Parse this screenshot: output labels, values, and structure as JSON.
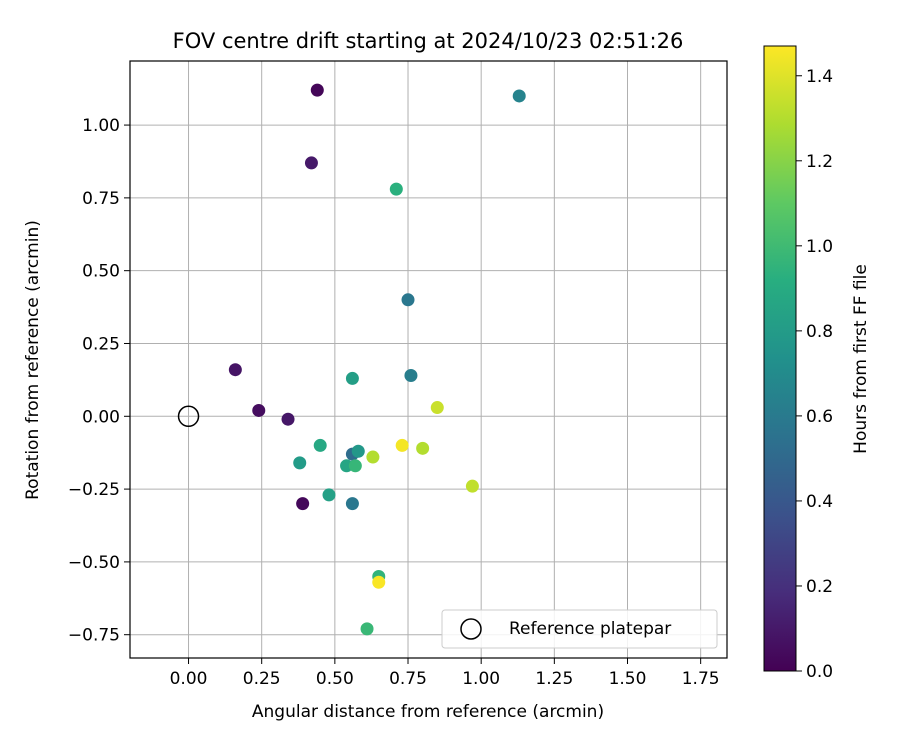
{
  "chart_data": {
    "type": "scatter",
    "title": "FOV centre drift starting at 2024/10/23 02:51:26",
    "xlabel": "Angular distance from reference (arcmin)",
    "ylabel": "Rotation from reference (arcmin)",
    "xlim": [
      -0.2,
      1.84
    ],
    "ylim": [
      -0.83,
      1.22
    ],
    "xticks": [
      0.0,
      0.25,
      0.5,
      0.75,
      1.0,
      1.25,
      1.5,
      1.75
    ],
    "xtick_labels": [
      "0.00",
      "0.25",
      "0.50",
      "0.75",
      "1.00",
      "1.25",
      "1.50",
      "1.75"
    ],
    "yticks": [
      -0.75,
      -0.5,
      -0.25,
      0.0,
      0.25,
      0.5,
      0.75,
      1.0
    ],
    "ytick_labels": [
      "−0.75",
      "−0.50",
      "−0.25",
      "0.00",
      "0.25",
      "0.50",
      "0.75",
      "1.00"
    ],
    "grid": true,
    "colorbar": {
      "label": "Hours from first FF file",
      "colormap": "viridis",
      "range": [
        0.0,
        1.47
      ],
      "ticks": [
        0.0,
        0.2,
        0.4,
        0.6,
        0.8,
        1.0,
        1.2,
        1.4
      ],
      "tick_labels": [
        "0.0",
        "0.2",
        "0.4",
        "0.6",
        "0.8",
        "1.0",
        "1.2",
        "1.4"
      ]
    },
    "reference": {
      "x": 0.0,
      "y": 0.0
    },
    "legend": {
      "position": "lower-right",
      "entries": [
        "Reference platepar"
      ]
    },
    "points": [
      {
        "x": 0.44,
        "y": 1.12,
        "c": 0.02
      },
      {
        "x": 0.42,
        "y": 0.87,
        "c": 0.1
      },
      {
        "x": 0.16,
        "y": 0.16,
        "c": 0.08
      },
      {
        "x": 0.24,
        "y": 0.02,
        "c": 0.05
      },
      {
        "x": 0.34,
        "y": -0.01,
        "c": 0.09
      },
      {
        "x": 0.39,
        "y": -0.3,
        "c": 0.03
      },
      {
        "x": 1.13,
        "y": 1.1,
        "c": 0.65
      },
      {
        "x": 0.71,
        "y": 0.78,
        "c": 0.93
      },
      {
        "x": 0.75,
        "y": 0.4,
        "c": 0.58
      },
      {
        "x": 0.56,
        "y": 0.13,
        "c": 0.82
      },
      {
        "x": 0.76,
        "y": 0.14,
        "c": 0.62
      },
      {
        "x": 0.45,
        "y": -0.1,
        "c": 0.88
      },
      {
        "x": 0.38,
        "y": -0.16,
        "c": 0.8
      },
      {
        "x": 0.48,
        "y": -0.27,
        "c": 0.83
      },
      {
        "x": 0.56,
        "y": -0.13,
        "c": 0.52
      },
      {
        "x": 0.58,
        "y": -0.12,
        "c": 0.78
      },
      {
        "x": 0.54,
        "y": -0.17,
        "c": 0.86
      },
      {
        "x": 0.57,
        "y": -0.17,
        "c": 0.97
      },
      {
        "x": 0.56,
        "y": -0.3,
        "c": 0.58
      },
      {
        "x": 0.63,
        "y": -0.14,
        "c": 1.3
      },
      {
        "x": 0.73,
        "y": -0.1,
        "c": 1.45
      },
      {
        "x": 0.8,
        "y": -0.11,
        "c": 1.3
      },
      {
        "x": 0.85,
        "y": 0.03,
        "c": 1.35
      },
      {
        "x": 0.97,
        "y": -0.24,
        "c": 1.33
      },
      {
        "x": 0.65,
        "y": -0.55,
        "c": 0.95
      },
      {
        "x": 0.65,
        "y": -0.57,
        "c": 1.46
      },
      {
        "x": 0.61,
        "y": -0.73,
        "c": 0.98
      }
    ]
  }
}
